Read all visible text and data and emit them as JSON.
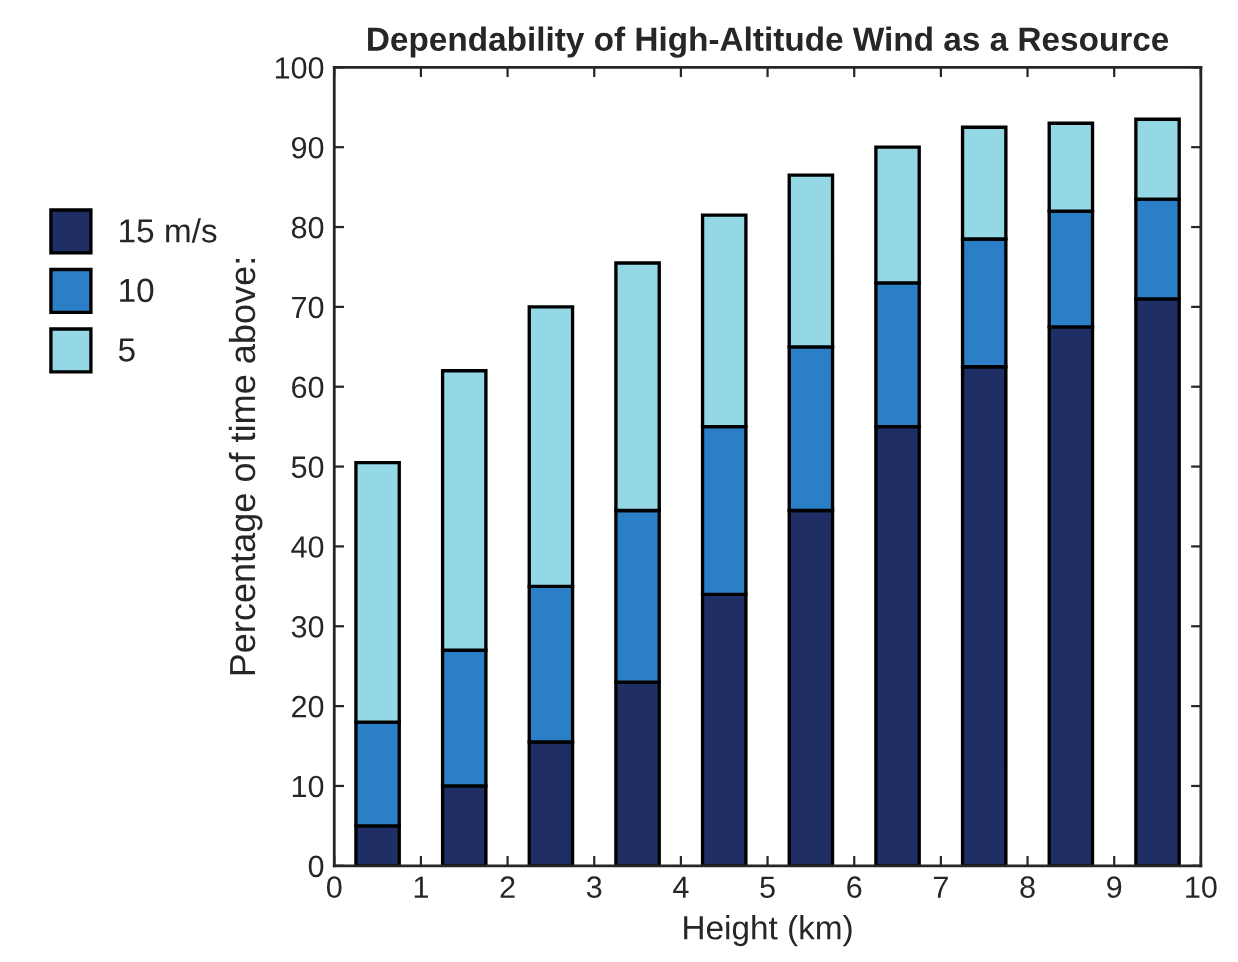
{
  "chart_data": {
    "type": "bar",
    "stacked": true,
    "title": "Dependability of High-Altitude Wind as a Resource",
    "xlabel": "Height (km)",
    "ylabel": "Percentage of time above:",
    "x": [
      0.5,
      1.5,
      2.5,
      3.5,
      4.5,
      5.5,
      6.5,
      7.5,
      8.5,
      9.5
    ],
    "series": [
      {
        "name": "15 m/s",
        "color": "#1f2f66",
        "values": [
          5,
          10,
          15.5,
          23,
          34,
          44.5,
          55,
          62.5,
          67.5,
          71
        ]
      },
      {
        "name": "10",
        "color": "#2a7fc6",
        "values": [
          13,
          17,
          19.5,
          21.5,
          21,
          20.5,
          18,
          16,
          14.5,
          12.5
        ]
      },
      {
        "name": "5",
        "color": "#94d8e6",
        "values": [
          32.5,
          35,
          35,
          31,
          26.5,
          21.5,
          17,
          14,
          11,
          10
        ]
      }
    ],
    "xlim": [
      0,
      10
    ],
    "xticks": [
      0,
      1,
      2,
      3,
      4,
      5,
      6,
      7,
      8,
      9,
      10
    ],
    "ylim": [
      0,
      100
    ],
    "yticks": [
      0,
      10,
      20,
      30,
      40,
      50,
      60,
      70,
      80,
      90,
      100
    ],
    "grid": false,
    "legend": "left"
  }
}
